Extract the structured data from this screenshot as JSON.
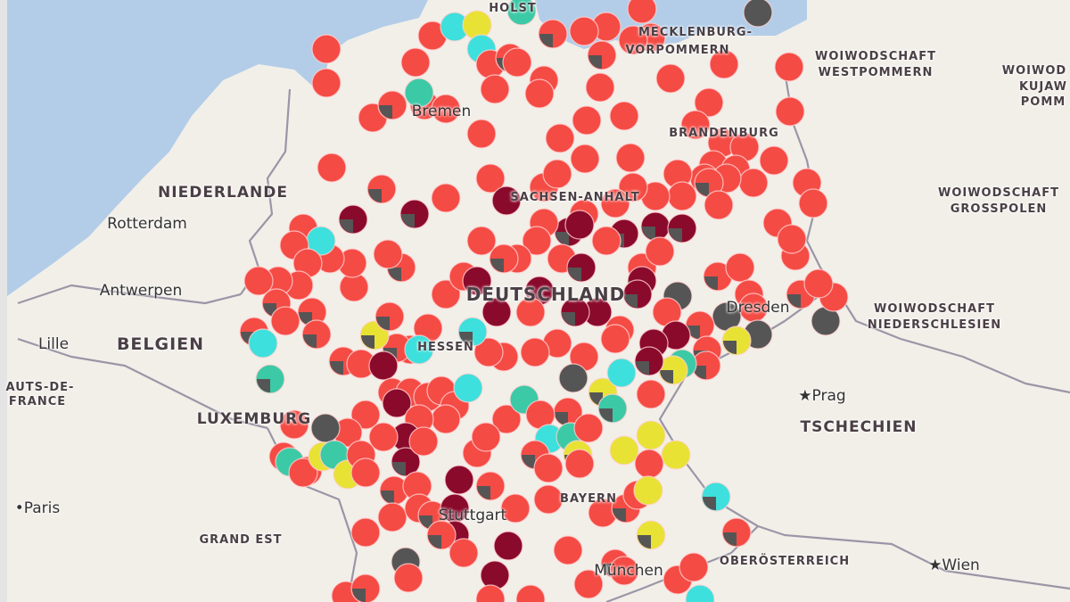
{
  "map": {
    "colors": {
      "land": "#f2efe9",
      "water": "#b3cde8",
      "border": "#9a96a6",
      "marker_red": "#f54b45",
      "marker_darkred": "#8a0a2c",
      "marker_gray": "#555555",
      "marker_yellow": "#e8e234",
      "marker_cyan": "#3de0dc",
      "marker_teal": "#3cc9a6"
    },
    "labels": {
      "holstein": "HOLST",
      "mv_1": "MECKLENBURG-",
      "mv_2": "VORPOMMERN",
      "westpommern_1": "WOIWODSCHAFT",
      "westpommern_2": "WESTPOMMERN",
      "kujaw_1": "WOIWOD",
      "kujaw_2": "KUJAW",
      "kujaw_3": "POMM",
      "niederlande": "NIEDERLANDE",
      "rotterdam": "Rotterdam",
      "antwerpen": "Antwerpen",
      "belgien": "BELGIEN",
      "lille": "Lille",
      "hdf_1": "AUTS-DE-",
      "hdf_2": "FRANCE",
      "luxemburg": "LUXEMBURG",
      "paris": "Paris",
      "grand_est": "GRAND EST",
      "brandenburg": "BRANDENBURG",
      "sachsen_anhalt": "SACHSEN-ANHALT",
      "deutschland": "DEUTSCHLAND",
      "dresden": "Dresden",
      "grosspolen_1": "WOIWODSCHAFT",
      "grosspolen_2": "GROSSPOLEN",
      "niederschlesien_1": "WOIWODSCHAFT",
      "niederschlesien_2": "NIEDERSCHLESIEN",
      "prag": "Prag",
      "tschechien": "TSCHECHIEN",
      "oberoesterreich": "OBERÖSTERREICH",
      "wien": "Wien",
      "bayern": "BAYERN",
      "hessen": "HESSEN",
      "stuttgart": "Stuttgart",
      "bremen": "Bremen",
      "muenchen": "München"
    }
  }
}
